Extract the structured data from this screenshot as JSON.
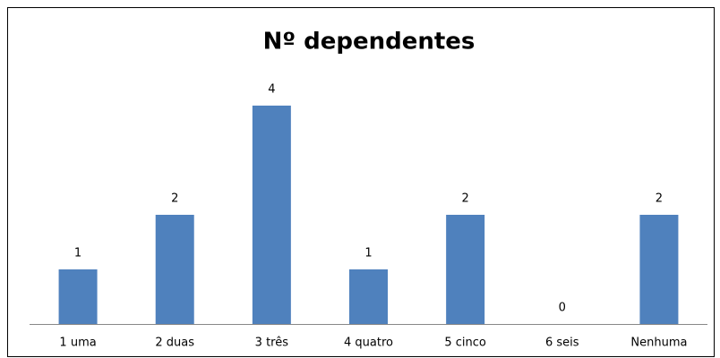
{
  "chart_data": {
    "type": "bar",
    "title": "Nº dependentes",
    "categories": [
      "1 uma",
      "2 duas",
      "3 três",
      "4 quatro",
      "5 cinco",
      "6 seis",
      "Nenhuma"
    ],
    "values": [
      1,
      2,
      4,
      1,
      2,
      0,
      2
    ],
    "color": "#4f81bd"
  }
}
